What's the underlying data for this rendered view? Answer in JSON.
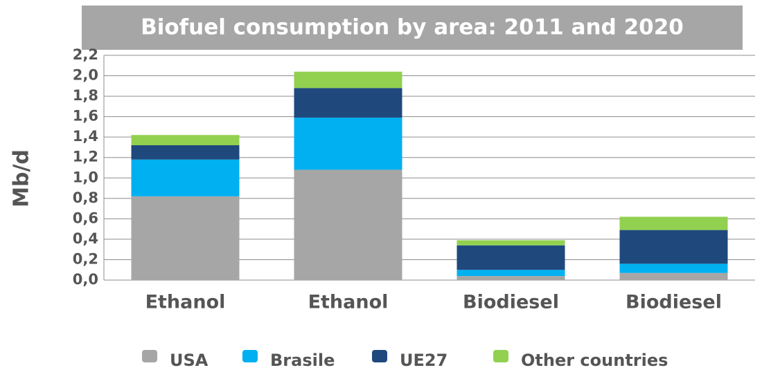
{
  "chart_data": {
    "type": "stacked_bar",
    "title": "Biofuel consumption by area: 2011 and 2020",
    "y_label": "Mb/d",
    "categories": [
      "Ethanol",
      "Ethanol",
      "Biodiesel",
      "Biodiesel"
    ],
    "series": [
      {
        "name": "USA",
        "color": "#a6a6a6",
        "values": [
          0.82,
          1.08,
          0.04,
          0.07
        ]
      },
      {
        "name": "Brasile",
        "color": "#00b0f0",
        "values": [
          0.36,
          0.51,
          0.06,
          0.09
        ]
      },
      {
        "name": "UE27",
        "color": "#1f497d",
        "values": [
          0.14,
          0.29,
          0.24,
          0.33
        ]
      },
      {
        "name": "Other countries",
        "color": "#92d050",
        "values": [
          0.1,
          0.16,
          0.05,
          0.13
        ]
      }
    ],
    "ylim": [
      0,
      2.2
    ],
    "yticks": [
      {
        "value": 0,
        "label": "0,0"
      },
      {
        "value": 0.2,
        "label": "0,2"
      },
      {
        "value": 0.4,
        "label": "0,4"
      },
      {
        "value": 0.6,
        "label": "0,6"
      },
      {
        "value": 0.8,
        "label": "0,8"
      },
      {
        "value": 1.0,
        "label": "1,0"
      },
      {
        "value": 1.2,
        "label": "1,2"
      },
      {
        "value": 1.4,
        "label": "1,4"
      },
      {
        "value": 1.6,
        "label": "1,6"
      },
      {
        "value": 1.8,
        "label": "1,8"
      },
      {
        "value": 2.0,
        "label": "2,0"
      },
      {
        "value": 2.2,
        "label": "2,2"
      }
    ],
    "grid": true,
    "legend": "bottom"
  }
}
